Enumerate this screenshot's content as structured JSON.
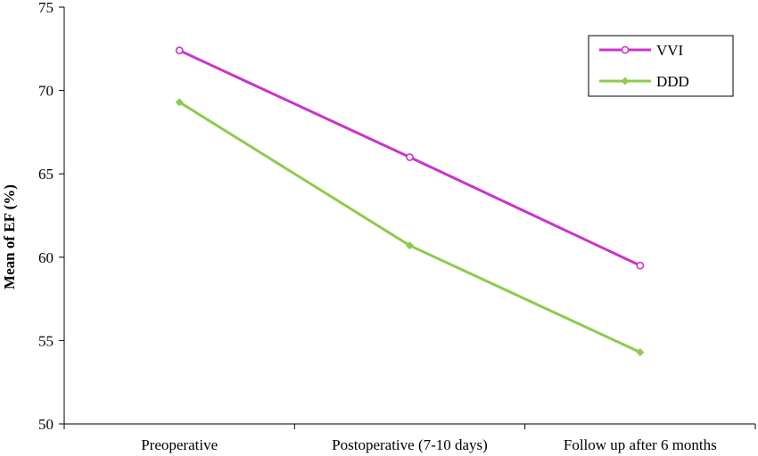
{
  "chart_data": {
    "type": "line",
    "title": "",
    "xlabel": "",
    "ylabel": "Mean of EF (%)",
    "ylim": [
      50,
      75
    ],
    "yticks": [
      "50",
      "55",
      "60",
      "65",
      "70",
      "75"
    ],
    "categories": [
      "Preoperative",
      "Postoperative (7-10 days)",
      "Follow up after 6 months"
    ],
    "grid": false,
    "legend_position": "top-right",
    "series": [
      {
        "name": "VVI",
        "values": [
          72.4,
          66.0,
          59.5
        ],
        "color": "#cc33cc",
        "marker": "circle"
      },
      {
        "name": "DDD",
        "values": [
          69.3,
          60.7,
          54.3
        ],
        "color": "#8ccc4c",
        "marker": "diamond"
      }
    ]
  }
}
